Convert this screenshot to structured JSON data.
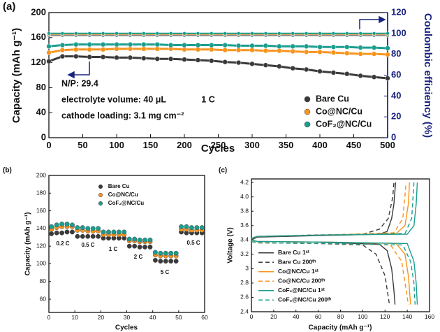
{
  "chart_data": [
    {
      "type": "line",
      "markers": true,
      "panel_label": "(a)",
      "xlabel": "Cycles",
      "ylabel": "Capacity (mAh g⁻¹)",
      "y2label": "Coulombic efficiency (%)",
      "y2_color": "#1a237e",
      "x": [
        0,
        20,
        40,
        60,
        80,
        100,
        120,
        140,
        160,
        180,
        200,
        220,
        240,
        260,
        280,
        300,
        320,
        340,
        360,
        380,
        400,
        420,
        440,
        460,
        480,
        500
      ],
      "xlim": [
        0,
        500
      ],
      "xticks": [
        0,
        50,
        100,
        150,
        200,
        250,
        300,
        350,
        400,
        450,
        500
      ],
      "ylim": [
        0,
        200
      ],
      "yticks": [
        0,
        40,
        80,
        120,
        160,
        200
      ],
      "y2lim": [
        0,
        120
      ],
      "y2ticks": [
        0,
        20,
        40,
        60,
        80,
        100,
        120
      ],
      "legend": "lower right",
      "series": [
        {
          "name": "Bare Cu",
          "color": "#3a3a3a",
          "values": [
            122,
            130,
            130,
            129,
            129,
            128,
            128,
            127,
            126,
            126,
            125,
            124,
            123,
            121,
            120,
            118,
            116,
            114,
            111,
            109,
            106,
            104,
            102,
            99,
            97,
            95
          ]
        },
        {
          "name": "Co@NC/Cu",
          "color": "#f7941d",
          "values": [
            136,
            140,
            141,
            141,
            141,
            142,
            142,
            142,
            142,
            142,
            141,
            141,
            141,
            140,
            140,
            140,
            139,
            139,
            138,
            137,
            137,
            136,
            135,
            134,
            134,
            133
          ]
        },
        {
          "name": "CoF₂@NC/Cu",
          "color": "#1b9e8f",
          "values": [
            146,
            148,
            149,
            149,
            149,
            149,
            149,
            149,
            149,
            148,
            148,
            148,
            148,
            148,
            147,
            147,
            147,
            146,
            146,
            146,
            145,
            145,
            145,
            144,
            144,
            143
          ]
        },
        {
          "color": "#8a8a8a",
          "axis": "y2",
          "values": [
            98,
            98,
            98,
            98,
            98,
            98,
            98,
            98,
            98,
            98,
            98,
            98,
            98,
            98,
            98,
            98,
            98,
            98,
            98,
            98,
            98,
            98,
            98,
            98,
            98,
            98
          ]
        },
        {
          "color": "#f7941d",
          "axis": "y2",
          "values": [
            99.5,
            99.5,
            99.5,
            99.5,
            99.5,
            99.5,
            99.5,
            99.5,
            99.5,
            99.5,
            99.5,
            99.5,
            99.5,
            99.5,
            99.5,
            99.5,
            99.5,
            99.5,
            99.5,
            99.5,
            99.5,
            99.5,
            99.5,
            99.5,
            99.5,
            99.5
          ]
        },
        {
          "color": "#1b9e8f",
          "axis": "y2",
          "values": [
            100,
            100,
            100,
            100,
            100,
            100,
            100,
            100,
            100,
            100,
            100,
            100,
            100,
            100,
            100,
            100,
            100,
            100,
            100,
            100,
            100,
            100,
            100,
            100,
            100,
            100
          ]
        }
      ],
      "annotations": [
        "N/P: 29.4",
        "electrolyte volume: 40 μL",
        "cathode loading: 3.1 mg cm⁻²",
        "1 C"
      ]
    },
    {
      "type": "scatter",
      "panel_label": "(b)",
      "xlabel": "Cycles",
      "ylabel": "Capacity (mAh g⁻¹)",
      "x": [
        1,
        3,
        5,
        7,
        9,
        11,
        13,
        15,
        17,
        19,
        21,
        23,
        25,
        27,
        29,
        31,
        33,
        35,
        37,
        39,
        41,
        43,
        45,
        47,
        49,
        51,
        53,
        55,
        57,
        59
      ],
      "xlim": [
        0,
        60
      ],
      "xticks": [
        0,
        10,
        20,
        30,
        40,
        50,
        60
      ],
      "ylim": [
        45,
        200
      ],
      "yticks": [
        60,
        80,
        100,
        120,
        140,
        160,
        180,
        200
      ],
      "legend": "upper center",
      "series": [
        {
          "name": "Bare Cu",
          "color": "#3a3a3a",
          "values": [
            134,
            135,
            135,
            136,
            136,
            131,
            131,
            131,
            131,
            131,
            129,
            129,
            129,
            129,
            129,
            120,
            120,
            119,
            119,
            119,
            104,
            103,
            103,
            103,
            103,
            136,
            135,
            135,
            135,
            135
          ]
        },
        {
          "name": "Co@NC/Cu",
          "color": "#f7941d",
          "values": [
            139,
            141,
            142,
            142,
            142,
            138,
            138,
            137,
            137,
            137,
            133,
            133,
            133,
            133,
            133,
            126,
            126,
            125,
            125,
            125,
            110,
            109,
            109,
            109,
            109,
            139,
            139,
            138,
            138,
            138
          ]
        },
        {
          "name": "CoF₂@NC/Cu",
          "color": "#1b9e8f",
          "values": [
            142,
            144,
            145,
            145,
            144,
            141,
            141,
            140,
            140,
            140,
            136,
            136,
            136,
            136,
            136,
            128,
            128,
            127,
            127,
            127,
            113,
            112,
            112,
            112,
            112,
            142,
            142,
            141,
            141,
            141
          ]
        }
      ],
      "annotations": [
        "0.2 C",
        "0.5 C",
        "1 C",
        "2 C",
        "5 C",
        "0.5 C"
      ]
    },
    {
      "type": "line",
      "panel_label": "(c)",
      "xlabel": "Capacity (mAh g⁻¹)",
      "ylabel": "Voltage (V)",
      "xlim": [
        0,
        160
      ],
      "xticks": [
        0,
        20,
        40,
        60,
        80,
        100,
        120,
        140,
        160
      ],
      "ylim": [
        2.4,
        4.25
      ],
      "yticks": [
        2.4,
        2.6,
        2.8,
        3,
        3.2,
        3.4,
        3.6,
        3.8,
        {
          "value": 4,
          "label": "4.0"
        },
        4.2
      ],
      "legend": "lower left",
      "series": [
        {
          "name": "Bare Cu 1ˢᵗ",
          "color": "#3a3a3a",
          "line_style": "solid",
          "x": [
            0,
            5,
            60,
            115,
            122,
            126,
            128,
            129.5,
            null,
            0,
            5,
            60,
            115,
            122,
            126,
            128,
            129
          ],
          "values": [
            3.4,
            3.44,
            3.46,
            3.48,
            3.52,
            3.7,
            3.9,
            4.2,
            null,
            3.4,
            3.38,
            3.37,
            3.34,
            3.25,
            3.0,
            2.7,
            2.5
          ]
        },
        {
          "name": "Bare Cu 200ᵗʰ",
          "color": "#3a3a3a",
          "line_style": "dashed",
          "x": [
            0,
            5,
            60,
            100,
            115,
            123,
            127,
            128,
            null,
            0,
            5,
            60,
            100,
            112,
            120,
            124
          ],
          "values": [
            3.42,
            3.45,
            3.47,
            3.48,
            3.55,
            3.7,
            4.0,
            4.2,
            null,
            3.38,
            3.36,
            3.35,
            3.33,
            3.2,
            2.9,
            2.5
          ]
        },
        {
          "name": "Co@NC/Cu 1ˢᵗ",
          "color": "#f7941d",
          "line_style": "solid",
          "x": [
            0,
            5,
            70,
            130,
            138,
            141,
            142,
            null,
            0,
            5,
            70,
            130,
            138,
            141,
            143
          ],
          "values": [
            3.42,
            3.45,
            3.47,
            3.49,
            3.6,
            3.9,
            4.2,
            null,
            3.4,
            3.38,
            3.37,
            3.35,
            3.2,
            2.9,
            2.5
          ]
        },
        {
          "name": "Co@NC/Cu 200ᵗʰ",
          "color": "#f7941d",
          "line_style": "dashed",
          "x": [
            0,
            5,
            70,
            128,
            136,
            139,
            null,
            0,
            5,
            70,
            125,
            135,
            139,
            141
          ],
          "values": [
            3.42,
            3.45,
            3.47,
            3.5,
            3.7,
            4.2,
            null,
            3.38,
            3.36,
            3.35,
            3.33,
            3.1,
            2.7,
            2.5
          ]
        },
        {
          "name": "CoF₂@NC/Cu 1ˢᵗ",
          "color": "#1b9e8f",
          "line_style": "solid",
          "x": [
            0,
            5,
            70,
            140,
            146,
            148,
            149,
            null,
            0,
            5,
            70,
            140,
            146,
            148,
            149
          ],
          "values": [
            3.42,
            3.45,
            3.47,
            3.48,
            3.6,
            3.9,
            4.2,
            null,
            3.4,
            3.38,
            3.37,
            3.35,
            3.1,
            2.8,
            2.5
          ]
        },
        {
          "name": "CoF₂@NC/Cu 200ᵗʰ",
          "color": "#1b9e8f",
          "line_style": "dashed",
          "x": [
            0,
            5,
            70,
            138,
            144,
            146,
            null,
            0,
            5,
            70,
            136,
            143,
            146,
            147
          ],
          "values": [
            3.42,
            3.45,
            3.47,
            3.49,
            3.7,
            4.2,
            null,
            3.38,
            3.36,
            3.35,
            3.33,
            3.1,
            2.8,
            2.5
          ]
        }
      ]
    }
  ]
}
